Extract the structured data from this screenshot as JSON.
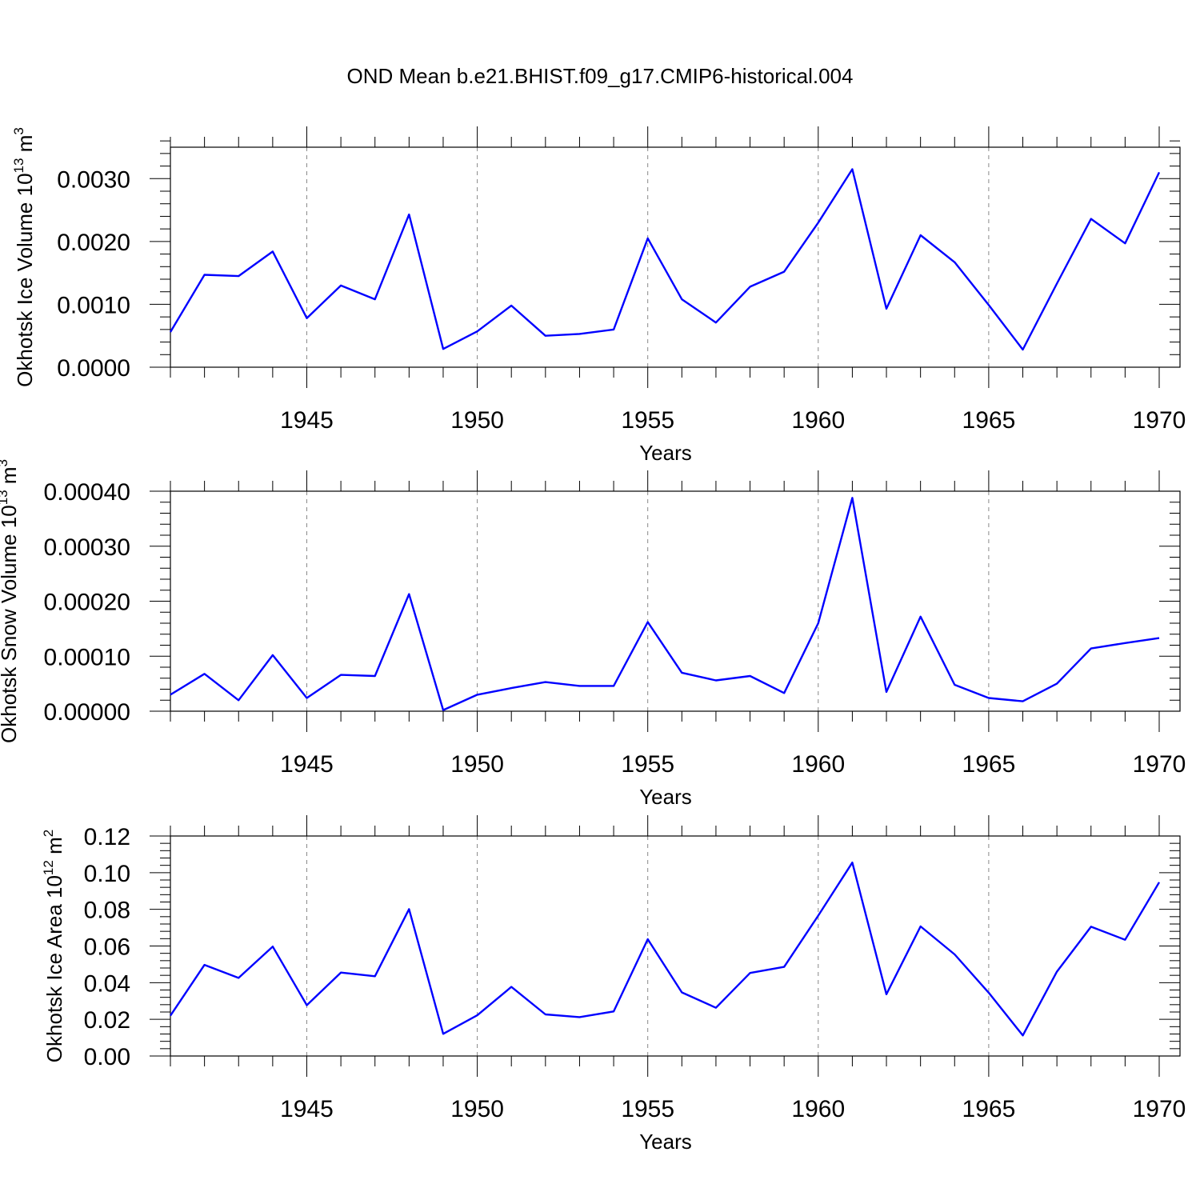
{
  "title": "OND Mean b.e21.BHIST.f09_g17.CMIP6-historical.004",
  "line_color": "#0000ff",
  "chart_data": [
    {
      "type": "line",
      "xlabel": "Years",
      "ylabel": "Okhotsk Ice Volume 10",
      "ylabel_exp": "13",
      "ylabel_unit": " m",
      "ylabel_unit_exp": "3",
      "xlim": [
        1941,
        1970
      ],
      "ylim": [
        0,
        0.0035
      ],
      "x_ticks": [
        "1945",
        "1950",
        "1955",
        "1960",
        "1965",
        "1970"
      ],
      "y_ticks": [
        "0.0000",
        "0.0010",
        "0.0020",
        "0.0030"
      ],
      "grid_x": "dashed vertical lines at major x ticks",
      "series": [
        {
          "x": [
            1941,
            1942,
            1943,
            1944,
            1945,
            1946,
            1947,
            1948,
            1949,
            1950,
            1951,
            1952,
            1953,
            1954,
            1955,
            1956,
            1957,
            1958,
            1959,
            1960,
            1961,
            1962,
            1963,
            1964,
            1965,
            1966,
            1967,
            1968,
            1969,
            1970
          ],
          "values": [
            0.00056,
            0.00147,
            0.00145,
            0.00184,
            0.00078,
            0.0013,
            0.00108,
            0.00243,
            0.00029,
            0.00057,
            0.00098,
            0.0005,
            0.00053,
            0.0006,
            0.00205,
            0.00108,
            0.00071,
            0.00128,
            0.00152,
            0.0023,
            0.00315,
            0.00093,
            0.0021,
            0.00167,
            0.00099,
            0.00028,
            0.00133,
            0.00236,
            0.00197,
            0.0031
          ]
        }
      ]
    },
    {
      "type": "line",
      "xlabel": "Years",
      "ylabel": "Okhotsk Snow Volume 10",
      "ylabel_exp": "13",
      "ylabel_unit": " m",
      "ylabel_unit_exp": "3",
      "xlim": [
        1941,
        1970
      ],
      "ylim": [
        0,
        0.0004
      ],
      "x_ticks": [
        "1945",
        "1950",
        "1955",
        "1960",
        "1965",
        "1970"
      ],
      "y_ticks": [
        "0.00000",
        "0.00010",
        "0.00020",
        "0.00030",
        "0.00040"
      ],
      "grid_x": "dashed vertical lines at major x ticks",
      "series": [
        {
          "x": [
            1941,
            1942,
            1943,
            1944,
            1945,
            1946,
            1947,
            1948,
            1949,
            1950,
            1951,
            1952,
            1953,
            1954,
            1955,
            1956,
            1957,
            1958,
            1959,
            1960,
            1961,
            1962,
            1963,
            1964,
            1965,
            1966,
            1967,
            1968,
            1969,
            1970
          ],
          "values": [
            3e-05,
            6.8e-05,
            2e-05,
            0.000102,
            2.4e-05,
            6.6e-05,
            6.4e-05,
            0.000213,
            2e-06,
            3e-05,
            4.2e-05,
            5.3e-05,
            4.6e-05,
            4.6e-05,
            0.000162,
            7e-05,
            5.6e-05,
            6.4e-05,
            3.3e-05,
            0.00016,
            0.000388,
            3.5e-05,
            0.000172,
            4.8e-05,
            2.4e-05,
            1.8e-05,
            5e-05,
            0.000114,
            0.000124,
            0.000133
          ]
        }
      ]
    },
    {
      "type": "line",
      "xlabel": "Years",
      "ylabel": "Okhotsk Ice Area 10",
      "ylabel_exp": "12",
      "ylabel_unit": " m",
      "ylabel_unit_exp": "2",
      "xlim": [
        1941,
        1970
      ],
      "ylim": [
        0,
        0.12
      ],
      "x_ticks": [
        "1945",
        "1950",
        "1955",
        "1960",
        "1965",
        "1970"
      ],
      "y_ticks": [
        "0.00",
        "0.02",
        "0.04",
        "0.06",
        "0.08",
        "0.10",
        "0.12"
      ],
      "grid_x": "dashed vertical lines at major x ticks",
      "series": [
        {
          "x": [
            1941,
            1942,
            1943,
            1944,
            1945,
            1946,
            1947,
            1948,
            1949,
            1950,
            1951,
            1952,
            1953,
            1954,
            1955,
            1956,
            1957,
            1958,
            1959,
            1960,
            1961,
            1962,
            1963,
            1964,
            1965,
            1966,
            1967,
            1968,
            1969,
            1970
          ],
          "values": [
            0.022,
            0.0497,
            0.0426,
            0.0597,
            0.0277,
            0.0455,
            0.0435,
            0.0801,
            0.0121,
            0.0222,
            0.0377,
            0.0227,
            0.0212,
            0.0243,
            0.0637,
            0.0347,
            0.0263,
            0.0453,
            0.0486,
            0.0766,
            0.1055,
            0.0337,
            0.0707,
            0.0554,
            0.0345,
            0.0112,
            0.046,
            0.0705,
            0.0634,
            0.0948
          ]
        }
      ]
    }
  ]
}
